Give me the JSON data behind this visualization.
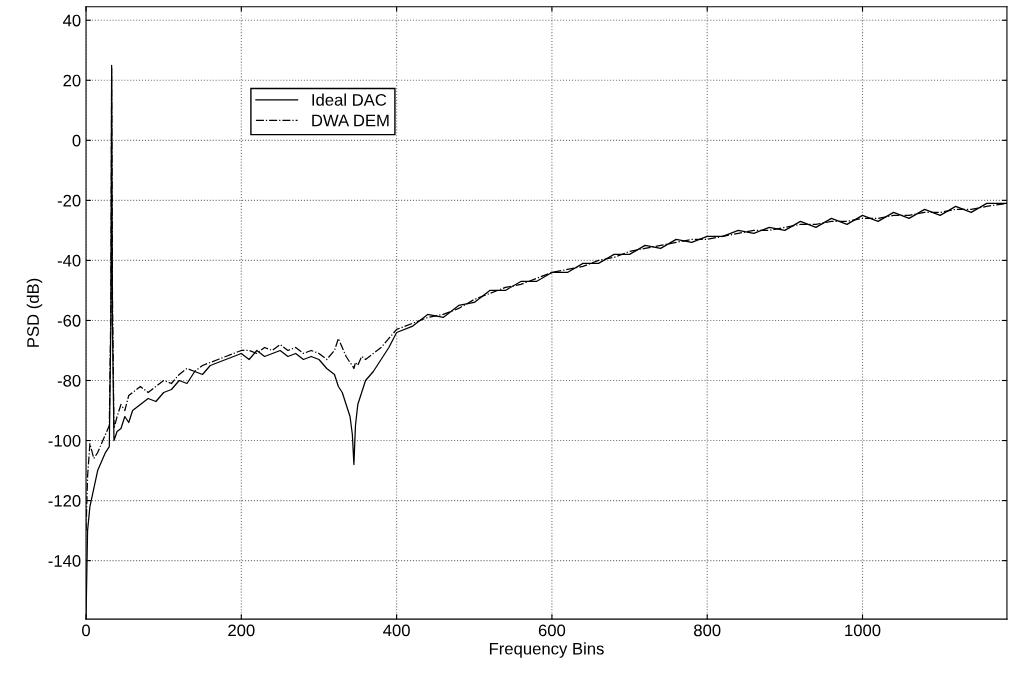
{
  "chart_data": {
    "type": "line",
    "xlabel": "Frequency Bins",
    "ylabel": "PSD (dB)",
    "xlim": [
      0,
      1186
    ],
    "ylim": [
      -159.5,
      44.5
    ],
    "xticks": [
      0,
      200,
      400,
      600,
      800,
      1000
    ],
    "yticks": [
      -140,
      -120,
      -100,
      -80,
      -60,
      -40,
      -20,
      0,
      20,
      40
    ],
    "grid": true,
    "legend": "top left",
    "marker": "none",
    "x": [
      0,
      2,
      5,
      10,
      15,
      20,
      25,
      30,
      32,
      33,
      34,
      36,
      40,
      45,
      50,
      55,
      60,
      70,
      80,
      90,
      100,
      110,
      120,
      130,
      140,
      150,
      160,
      170,
      180,
      190,
      200,
      210,
      220,
      230,
      240,
      250,
      260,
      270,
      280,
      290,
      300,
      310,
      320,
      325,
      330,
      335,
      340,
      343,
      345,
      347,
      350,
      355,
      360,
      370,
      380,
      390,
      400,
      420,
      440,
      460,
      480,
      500,
      520,
      540,
      560,
      580,
      600,
      620,
      640,
      660,
      680,
      700,
      720,
      740,
      760,
      780,
      800,
      820,
      840,
      860,
      880,
      900,
      920,
      940,
      960,
      980,
      1000,
      1020,
      1040,
      1060,
      1080,
      1100,
      1120,
      1140,
      1160,
      1186
    ],
    "series": [
      {
        "name": "Ideal DAC",
        "color": "#000000",
        "line_style": "solid",
        "values": [
          -159,
          -130,
          -122,
          -116,
          -110,
          -107,
          -104,
          -102,
          -60,
          25,
          -60,
          -100,
          -97,
          -96,
          -92,
          -94,
          -90,
          -88,
          -86,
          -87,
          -84,
          -83,
          -80,
          -81,
          -77,
          -78,
          -75,
          -74,
          -73,
          -72,
          -71,
          -73,
          -70,
          -72,
          -71,
          -70,
          -72,
          -71,
          -73,
          -72,
          -73,
          -76,
          -78,
          -82,
          -84,
          -88,
          -92,
          -98,
          -108,
          -95,
          -88,
          -84,
          -80,
          -77,
          -73,
          -69,
          -64,
          -62,
          -58,
          -59,
          -55,
          -54,
          -50,
          -50,
          -47,
          -47,
          -44,
          -44,
          -41,
          -41,
          -38,
          -38,
          -35,
          -36,
          -33,
          -34,
          -32,
          -32,
          -30,
          -31,
          -29,
          -30,
          -27,
          -29,
          -26,
          -28,
          -25,
          -27,
          -24,
          -26,
          -23,
          -25,
          -22,
          -24,
          -21,
          -21
        ]
      },
      {
        "name": "DWA DEM",
        "color": "#000000",
        "line_style": "dashdot",
        "values": [
          -130,
          -112,
          -101,
          -106,
          -104,
          -101,
          -98,
          -95,
          -55,
          24,
          -50,
          -96,
          -92,
          -88,
          -90,
          -85,
          -84,
          -82,
          -84,
          -82,
          -80,
          -81,
          -78,
          -76,
          -77,
          -75,
          -74,
          -73,
          -72,
          -71,
          -70,
          -70,
          -71,
          -69,
          -70,
          -68,
          -70,
          -69,
          -71,
          -70,
          -71,
          -73,
          -70,
          -66,
          -69,
          -72,
          -74,
          -75,
          -76,
          -74,
          -75,
          -72,
          -73,
          -71,
          -69,
          -66,
          -63,
          -61,
          -59,
          -58,
          -56,
          -53,
          -51,
          -49,
          -48,
          -46,
          -44,
          -43,
          -42,
          -40,
          -39,
          -37,
          -36,
          -35,
          -34,
          -33,
          -33,
          -32,
          -31,
          -30,
          -30,
          -29,
          -28,
          -28,
          -27,
          -27,
          -26,
          -26,
          -25,
          -25,
          -24,
          -24,
          -23,
          -23,
          -22,
          -21
        ]
      }
    ]
  }
}
